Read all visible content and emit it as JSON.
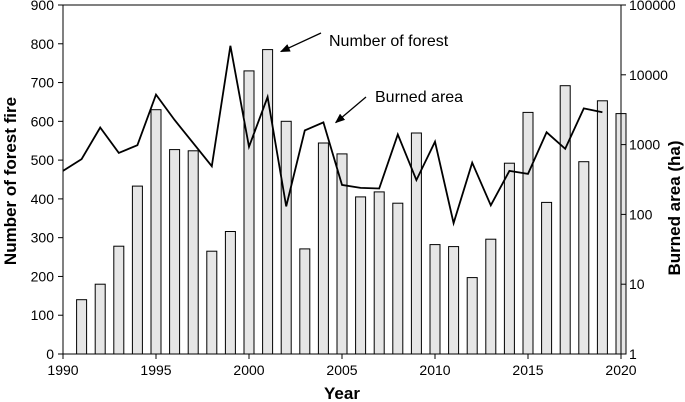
{
  "chart_data": {
    "type": "bar",
    "x_label": "Year",
    "y_left_label": "Number of forest fire",
    "y_right_label": "Burned area (ha)",
    "x_range": [
      1990,
      2020
    ],
    "x_ticks": [
      "1990",
      "1995",
      "2000",
      "2005",
      "2010",
      "2015",
      "2020"
    ],
    "y_left_range": [
      0,
      900
    ],
    "y_left_ticks": [
      "0",
      "100",
      "200",
      "300",
      "400",
      "500",
      "600",
      "700",
      "800",
      "900"
    ],
    "y_right_scale": "log",
    "y_right_range": [
      1,
      100000
    ],
    "y_right_ticks": [
      "1",
      "10",
      "100",
      "1000",
      "10000",
      "100000"
    ],
    "bar_color": "#e6e6e6",
    "line_color": "#000000",
    "series": [
      {
        "type": "bar",
        "axis": "left",
        "x": [
          1991,
          1992,
          1993,
          1994,
          1995,
          1996,
          1997,
          1998,
          1999,
          2000,
          2001,
          2002,
          2003,
          2004,
          2005,
          2006,
          2007,
          2008,
          2009,
          2010,
          2011,
          2012,
          2013,
          2014,
          2015,
          2016,
          2017,
          2018,
          2019,
          2020
        ],
        "values": [
          140,
          180,
          278,
          433,
          630,
          527,
          524,
          265,
          316,
          730,
          785,
          600,
          271,
          544,
          516,
          405,
          418,
          389,
          570,
          282,
          277,
          197,
          296,
          492,
          623,
          391,
          692,
          496,
          653,
          620
        ]
      },
      {
        "type": "line",
        "axis": "right",
        "x": [
          1990,
          1991,
          1992,
          1993,
          1994,
          1995,
          1996,
          1997,
          1998,
          1999,
          2000,
          2001,
          2002,
          2003,
          2004,
          2005,
          2006,
          2007,
          2008,
          2009,
          2010,
          2011,
          2012,
          2013,
          2014,
          2015,
          2016,
          2017,
          2018,
          2019
        ],
        "values": [
          420,
          620,
          1760,
          760,
          980,
          5200,
          2250,
          1050,
          490,
          26000,
          930,
          4800,
          130,
          1600,
          2080,
          265,
          240,
          235,
          1400,
          310,
          1100,
          75,
          550,
          135,
          420,
          380,
          1500,
          870,
          3300,
          2900
        ]
      }
    ],
    "annotations": [
      {
        "text": "Number of forest",
        "points_to_year": 2001.5,
        "axis": "left",
        "value": 785
      },
      {
        "text": "Burned area",
        "points_to_year": 2004.5,
        "axis": "right",
        "value": 2000
      }
    ]
  }
}
